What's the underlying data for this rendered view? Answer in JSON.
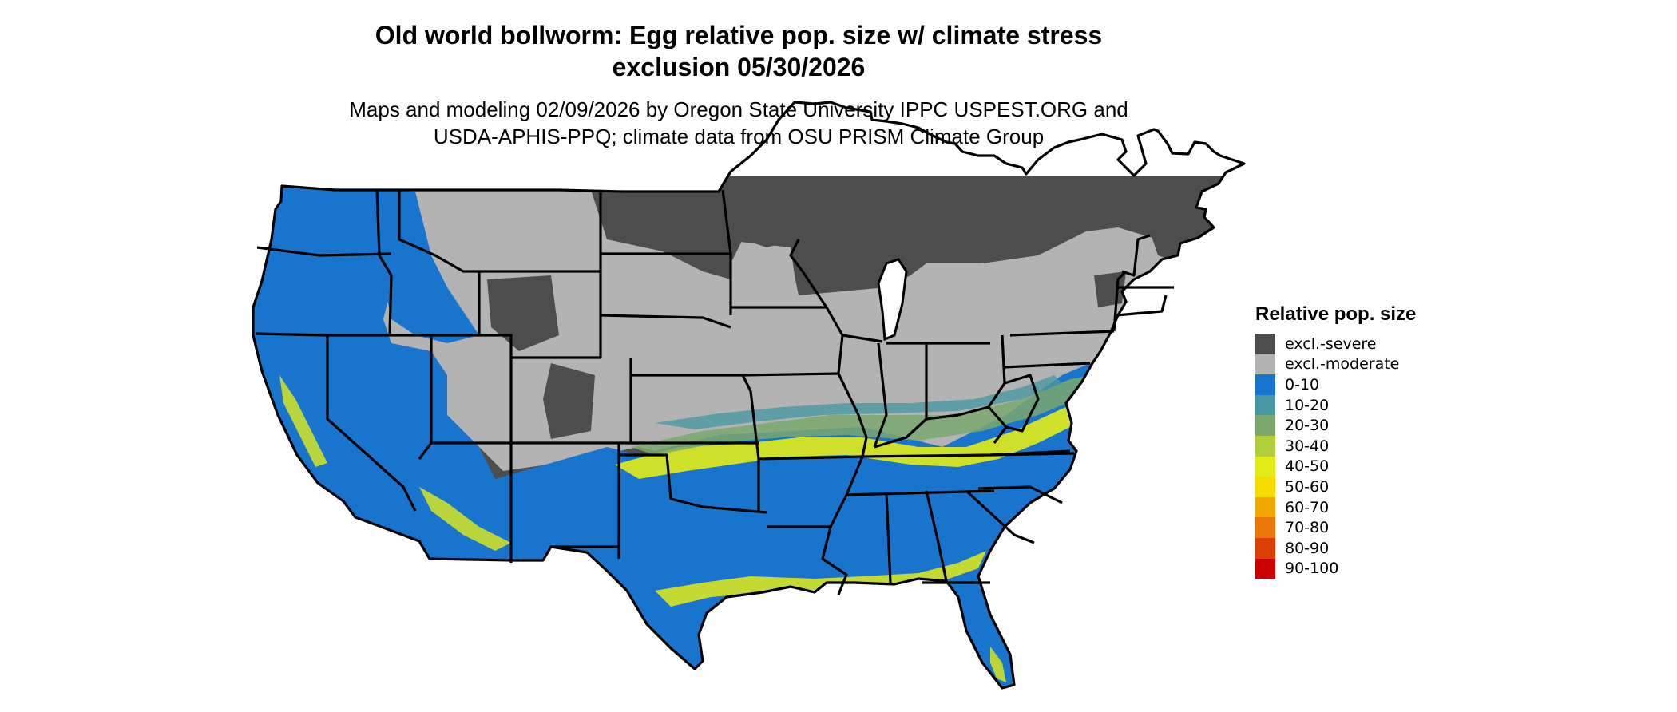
{
  "title_line1": "Old world bollworm: Egg relative pop. size w/ climate stress",
  "title_line2": "exclusion 05/30/2026",
  "subtitle_line1": "Maps and modeling 02/09/2026 by Oregon State University IPPC USPEST.ORG and",
  "subtitle_line2": "USDA-APHIS-PPQ; climate data from OSU PRISM Climate Group",
  "legend": {
    "title": "Relative pop. size",
    "items": [
      {
        "label": "excl.-severe",
        "color": "#4d4d4d"
      },
      {
        "label": "excl.-moderate",
        "color": "#b3b3b3"
      },
      {
        "label": "0-10",
        "color": "#1874cd"
      },
      {
        "label": "10-20",
        "color": "#4a97a4"
      },
      {
        "label": "20-30",
        "color": "#7ba86f"
      },
      {
        "label": "30-40",
        "color": "#b0cf3a"
      },
      {
        "label": "40-50",
        "color": "#e3ec18"
      },
      {
        "label": "50-60",
        "color": "#f7dc00"
      },
      {
        "label": "60-70",
        "color": "#f0a800"
      },
      {
        "label": "70-80",
        "color": "#e8780a"
      },
      {
        "label": "80-90",
        "color": "#dc4000"
      },
      {
        "label": "90-100",
        "color": "#cc0000"
      }
    ]
  },
  "map": {
    "border_color": "#000000"
  }
}
